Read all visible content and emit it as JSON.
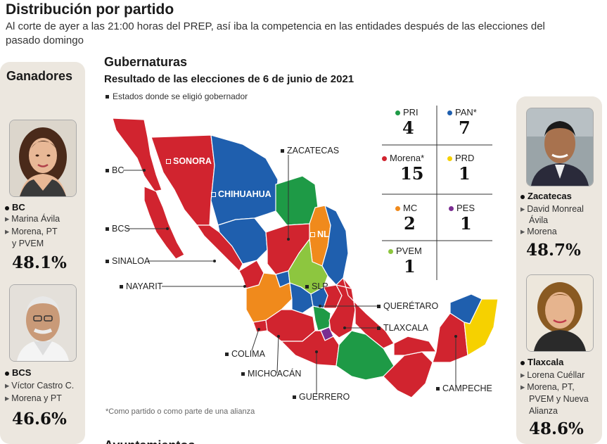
{
  "header": {
    "title": "Distribución por partido",
    "subtitle": "Al corte de ayer a las 21:00 horas del PREP, así iba la competencia en las entidades después de las elecciones del pasado domingo"
  },
  "section": {
    "title": "Gubernaturas",
    "subtitle": "Resultado de las elecciones de 6 de junio de 2021",
    "legend": "Estados donde se eligió gobernador",
    "footnote": "*Como partido o como parte de una alianza",
    "cut_text": "Ayuntamientos"
  },
  "winners_left": {
    "heading": "Ganadores",
    "items": [
      {
        "state": "BC",
        "name": "Marina  Ávila",
        "party": "Morena, PT",
        "party2": "y PVEM",
        "pct": "48.1%"
      },
      {
        "state": "BCS",
        "name": "Víctor Castro C.",
        "party": "Morena y PT",
        "party2": "",
        "pct": "46.6%"
      }
    ]
  },
  "winners_right": {
    "items": [
      {
        "state": "Zacatecas",
        "name": "David Monreal",
        "name2": "Ávila",
        "party": "Morena",
        "pct": "48.7%"
      },
      {
        "state": "Tlaxcala",
        "name": "Lorena Cuéllar",
        "party": "Morena, PT,",
        "party2": "PVEM y Nueva",
        "party3": "Alianza",
        "pct": "48.6%"
      }
    ]
  },
  "parties": [
    {
      "name": "PRI",
      "count": "4",
      "color": "#1e9a46"
    },
    {
      "name": "PAN*",
      "count": "7",
      "color": "#1f5fae"
    },
    {
      "name": "Morena*",
      "count": "15",
      "color": "#d1242f"
    },
    {
      "name": "PRD",
      "count": "1",
      "color": "#f6d100"
    },
    {
      "name": "MC",
      "count": "2",
      "color": "#f08a1c"
    },
    {
      "name": "PES",
      "count": "1",
      "color": "#7a2d91"
    },
    {
      "name": "PVEM",
      "count": "1",
      "color": "#8dc63f"
    }
  ],
  "map_labels": {
    "bc": "BC",
    "bcs": "BCS",
    "sinaloa": "SINALOA",
    "nayarit": "NAYARIT",
    "sonora": "SONORA",
    "chihuahua": "CHIHUAHUA",
    "zacatecas": "ZACATECAS",
    "nl": "NL",
    "slp": "SLP",
    "queretaro": "QUERÉTARO",
    "tlaxcala": "TLAXCALA",
    "colima": "COLIMA",
    "michoacan": "MICHOACÁN",
    "guerrero": "GUERRERO",
    "campeche": "CAMPECHE"
  }
}
